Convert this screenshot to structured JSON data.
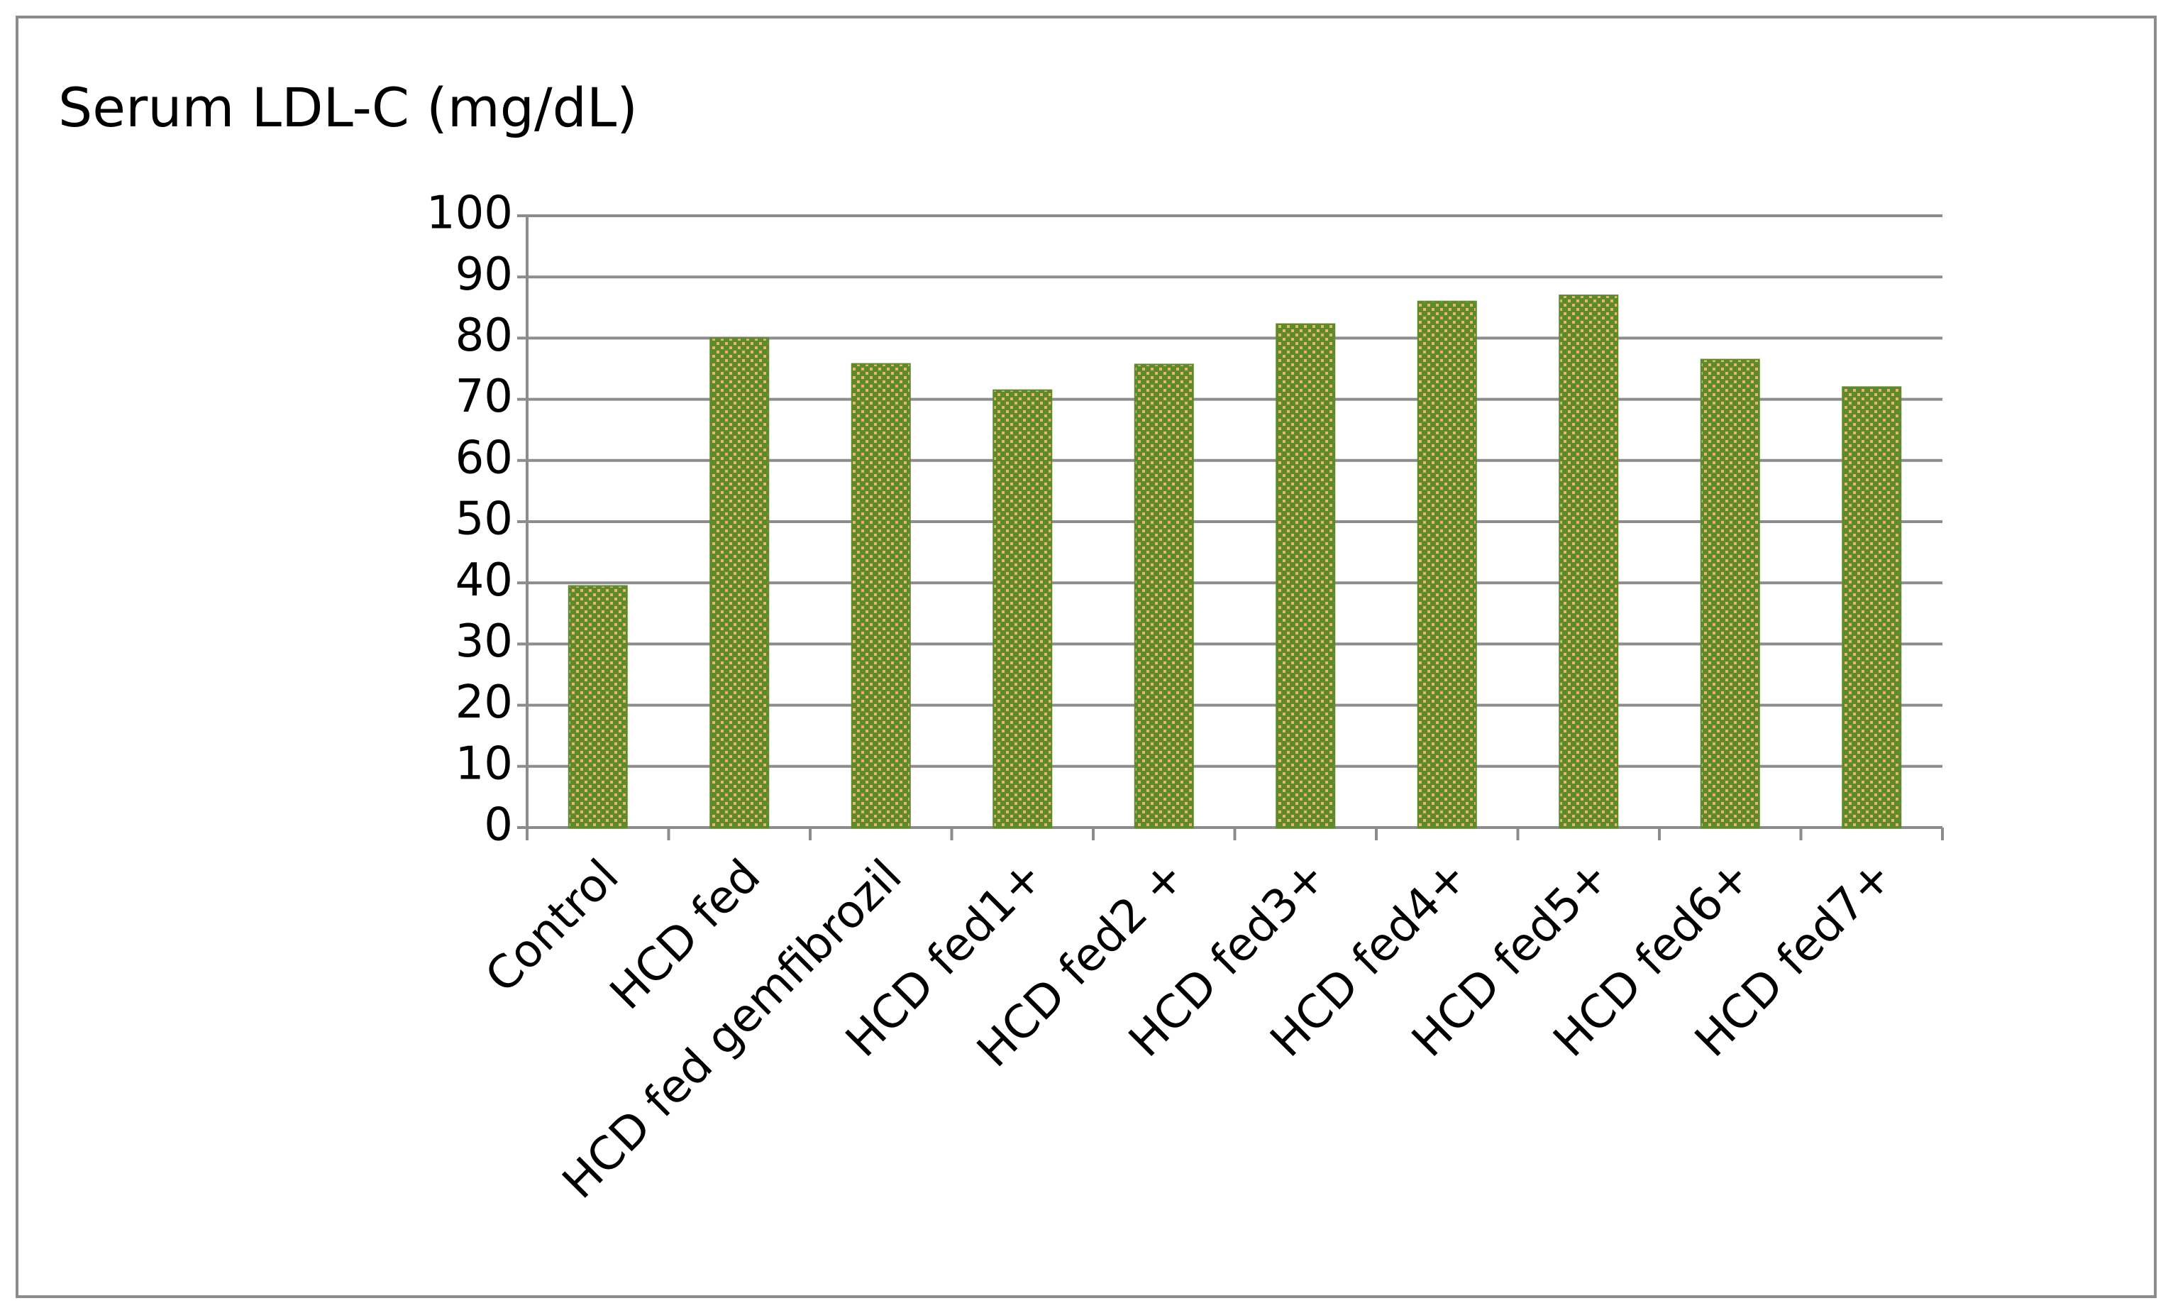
{
  "chart_data": {
    "type": "bar",
    "title": "Serum LDL-C (mg/dL)",
    "categories": [
      "Control",
      "HCD fed",
      "HCD fed gemfibrozil",
      "HCD fed1+",
      "HCD fed2 +",
      "HCD fed3+",
      "HCD fed4+",
      "HCD fed5+",
      "HCD fed6+",
      "HCD fed7+"
    ],
    "values": [
      39.5,
      80,
      75.8,
      71.5,
      75.7,
      82.3,
      86,
      87,
      76.5,
      72
    ],
    "color": "#5e8a2c",
    "ylim": [
      0,
      100
    ],
    "yticks": [
      0,
      10,
      20,
      30,
      40,
      50,
      60,
      70,
      80,
      90,
      100
    ],
    "grid": true
  }
}
